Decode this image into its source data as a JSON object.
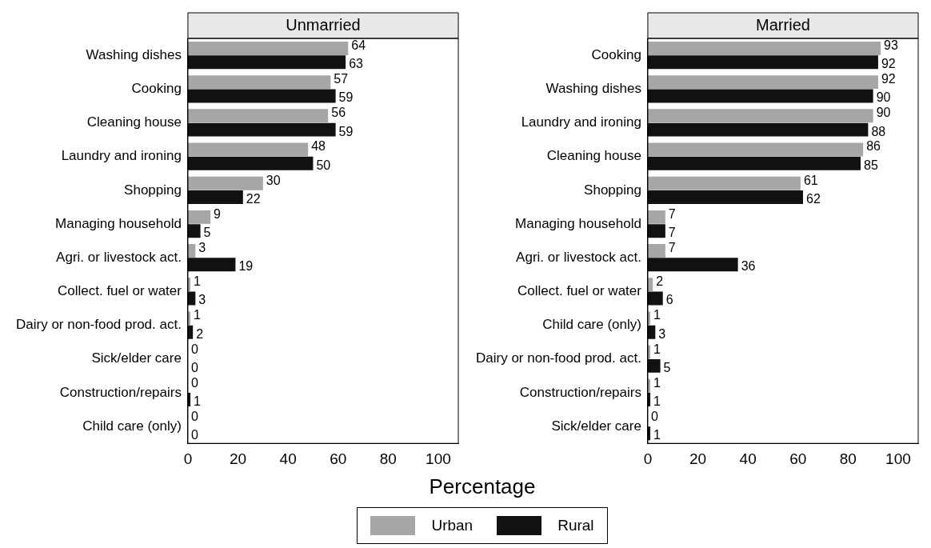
{
  "chart_data": [
    {
      "type": "bar",
      "orientation": "horizontal",
      "title": "Unmarried",
      "xlabel": "Percentage",
      "categories": [
        "Washing dishes",
        "Cooking",
        "Cleaning house",
        "Laundry and ironing",
        "Shopping",
        "Managing household",
        "Agri. or livestock act.",
        "Collect. fuel or water",
        "Dairy or non-food prod. act.",
        "Sick/elder care",
        "Construction/repairs",
        "Child care (only)"
      ],
      "series": [
        {
          "name": "Urban",
          "color": "#a6a6a6",
          "values": [
            64,
            57,
            56,
            48,
            30,
            9,
            3,
            1,
            1,
            0,
            0,
            0
          ]
        },
        {
          "name": "Rural",
          "color": "#111111",
          "values": [
            63,
            59,
            59,
            50,
            22,
            5,
            19,
            3,
            2,
            0,
            1,
            0
          ]
        }
      ],
      "xlim": [
        0,
        108
      ],
      "xticks": [
        0,
        20,
        40,
        60,
        80,
        100
      ],
      "data_labels": true,
      "grid": false,
      "legend": "bottom"
    },
    {
      "type": "bar",
      "orientation": "horizontal",
      "title": "Married",
      "categories": [
        "Cooking",
        "Washing dishes",
        "Laundry and ironing",
        "Cleaning house",
        "Shopping",
        "Managing household",
        "Agri. or livestock act.",
        "Collect. fuel or water",
        "Child care (only)",
        "Dairy or non-food prod. act.",
        "Construction/repairs",
        "Sick/elder care"
      ],
      "series": [
        {
          "name": "Urban",
          "color": "#a6a6a6",
          "values": [
            93,
            92,
            90,
            86,
            61,
            7,
            7,
            2,
            1,
            1,
            1,
            0
          ]
        },
        {
          "name": "Rural",
          "color": "#111111",
          "values": [
            92,
            90,
            88,
            85,
            62,
            7,
            36,
            6,
            3,
            5,
            1,
            1
          ]
        }
      ],
      "xlim": [
        0,
        108
      ],
      "xticks": [
        0,
        20,
        40,
        60,
        80,
        100
      ],
      "data_labels": true,
      "grid": false,
      "legend": "bottom"
    }
  ]
}
